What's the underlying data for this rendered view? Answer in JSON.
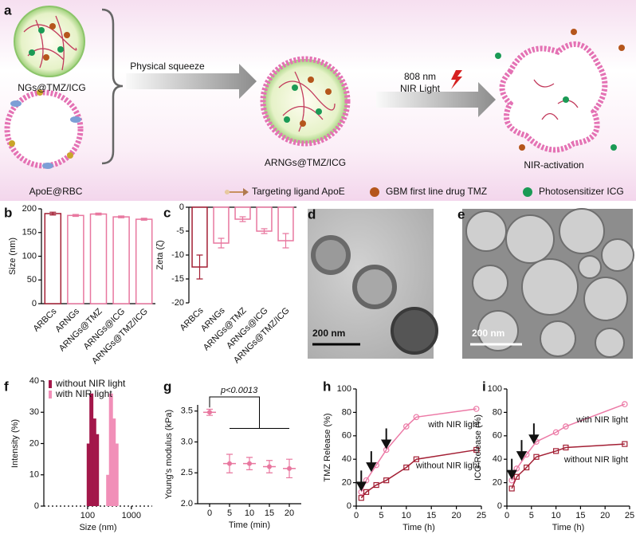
{
  "panel_a": {
    "label": "a",
    "ngs": "NGs@TMZ/ICG",
    "rbc": "ApoE@RBC",
    "squeeze": "Physical squeeze",
    "arngs": "ARNGs@TMZ/ICG",
    "light": [
      "808 nm",
      "NIR Light"
    ],
    "activation": "NIR-activation",
    "legend": [
      "Targeting ligand ApoE",
      "GBM first line drug TMZ",
      "Photosensitizer ICG"
    ]
  },
  "images": [
    {
      "label": "d",
      "scale_bar": "200 nm"
    },
    {
      "label": "e",
      "scale_bar": "200 nm"
    }
  ],
  "chart_data": [
    {
      "label": "b",
      "type": "bar",
      "categories": [
        "ARBCs",
        "ARNGs",
        "ARNGs@TMZ",
        "ARNGs@ICG",
        "ARNGs@TMZ/ICG"
      ],
      "values": [
        190,
        186,
        189,
        183,
        178
      ],
      "errors": [
        3,
        2,
        2,
        2,
        2
      ],
      "colors": [
        "#a31f34",
        "#e8779f",
        "#e8779f",
        "#e8779f",
        "#e8779f"
      ],
      "ylabel": "Size (nm)",
      "ylim": [
        0,
        200
      ],
      "yticks": [
        0,
        50,
        100,
        150,
        200
      ]
    },
    {
      "label": "c",
      "type": "bar",
      "categories": [
        "ARBCs",
        "ARNGs",
        "ARNGs@TMZ",
        "ARNGs@ICG",
        "ARNGs@TMZ/ICG"
      ],
      "values": [
        -12.5,
        -7.5,
        -2.5,
        -5,
        -7
      ],
      "errors": [
        2.5,
        1,
        0.5,
        0.5,
        1.5
      ],
      "colors": [
        "#a31f34",
        "#e8779f",
        "#e8779f",
        "#e8779f",
        "#e8779f"
      ],
      "ylabel": "Zeta (ζ)",
      "ylim": [
        -20,
        0
      ],
      "yticks": [
        -20,
        -15,
        -10,
        -5,
        0
      ]
    },
    {
      "label": "f",
      "type": "bar",
      "xscale": "log",
      "legend": "upper left",
      "xlabel": "Size (nm)",
      "ylabel": "Intensity (%)",
      "xlim": [
        10,
        3000
      ],
      "xticks": [
        100,
        1000
      ],
      "ylim": [
        0,
        40
      ],
      "yticks": [
        0,
        10,
        20,
        30,
        40
      ],
      "series": [
        {
          "name": "without NIR light",
          "color": "#a3174a",
          "x": [
            106,
            122,
            142,
            164
          ],
          "values": [
            20,
            36,
            28,
            23
          ]
        },
        {
          "name": "with NIR light",
          "color": "#f18fb8",
          "x": [
            295,
            342,
            396,
            459
          ],
          "values": [
            10,
            36,
            28,
            20
          ]
        }
      ]
    },
    {
      "label": "g",
      "type": "scatter",
      "xlabel": "Time (min)",
      "ylabel": "Young's modulus (kPa)",
      "x": [
        0,
        5,
        10,
        15,
        20
      ],
      "values": [
        3.48,
        2.65,
        2.65,
        2.6,
        2.57
      ],
      "errors": [
        0.05,
        0.15,
        0.1,
        0.1,
        0.15
      ],
      "color": "#e8779f",
      "annotation": "p<0.0013",
      "xlim": [
        -3,
        23
      ],
      "xticks": [
        0,
        5,
        10,
        15,
        20
      ],
      "ylim": [
        2.0,
        3.6
      ],
      "yticks": [
        {
          "value": 2,
          "label": "2.0"
        },
        {
          "value": 2.5,
          "label": "2.5"
        },
        {
          "value": 3,
          "label": "3.0"
        },
        {
          "value": 3.5,
          "label": "3.5"
        }
      ]
    },
    {
      "label": "h",
      "type": "line",
      "xlabel": "Time (h)",
      "ylabel": "TMZ  Release (%)",
      "x": [
        1,
        2,
        4,
        6,
        10,
        12,
        24
      ],
      "arrows": [
        1,
        3,
        6
      ],
      "xlim": [
        0,
        25
      ],
      "xticks": [
        0,
        5,
        10,
        15,
        20,
        25
      ],
      "ylim": [
        0,
        100
      ],
      "yticks": [
        0,
        20,
        40,
        60,
        80,
        100
      ],
      "series": [
        {
          "name": "with NIR light",
          "color": "#ec7aa6",
          "values": [
            12,
            22,
            35,
            48,
            68,
            76,
            83
          ]
        },
        {
          "name": "without NIR light",
          "color": "#a31f34",
          "values": [
            7,
            12,
            18,
            22,
            33,
            40,
            48
          ]
        }
      ]
    },
    {
      "label": "i",
      "type": "line",
      "xlabel": "Time (h)",
      "ylabel": "ICG Release (%)",
      "x": [
        1,
        2,
        4,
        6,
        10,
        12,
        24
      ],
      "arrows": [
        1,
        3,
        5.5
      ],
      "xlim": [
        0,
        25
      ],
      "xticks": [
        0,
        5,
        10,
        15,
        20,
        25
      ],
      "ylim": [
        0,
        100
      ],
      "yticks": [
        0,
        20,
        40,
        60,
        80,
        100
      ],
      "series": [
        {
          "name": "with NIR light",
          "color": "#ec7aa6",
          "values": [
            22,
            32,
            44,
            55,
            63,
            68,
            87
          ]
        },
        {
          "name": "without NIR light",
          "color": "#a31f34",
          "values": [
            15,
            25,
            33,
            42,
            47,
            50,
            53
          ]
        }
      ]
    }
  ]
}
